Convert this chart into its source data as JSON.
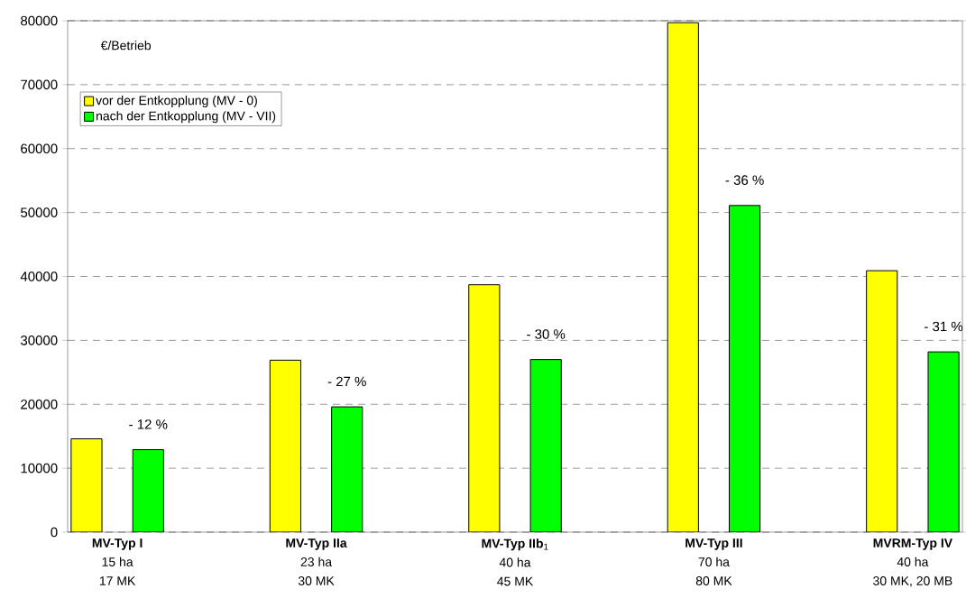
{
  "chart_data": {
    "type": "bar",
    "ylabel": "€/Betrieb",
    "categories": [
      "**MV-Typ I**\n15 ha\n17 MK",
      "**MV-Typ IIa**\n23 ha\n30 MK",
      "**MV-Typ IIb**$_{1}$\n40 ha\n45 MK",
      "**MV-Typ III**\n70 ha\n80 MK",
      "**MVRM-Typ IV**\n40 ha\n30 MK, 20 MB"
    ],
    "series": [
      {
        "name": "vor der Entkopplung (MV - 0)",
        "color": "#ffff00",
        "values": [
          14600,
          26900,
          38700,
          79700,
          40900
        ]
      },
      {
        "name": "nach der Entkopplung (MV - VII)",
        "color": "#00ff00",
        "values": [
          12900,
          19600,
          27000,
          51100,
          28200
        ]
      }
    ],
    "ylim": [
      0,
      80000
    ],
    "yticks": [
      0,
      10000,
      20000,
      30000,
      40000,
      50000,
      60000,
      70000,
      80000
    ],
    "grid": "y",
    "legend": "top left",
    "annotations": [
      "- 12 %",
      "- 27 %",
      "- 30 %",
      "- 36 %",
      "- 31 %"
    ]
  }
}
